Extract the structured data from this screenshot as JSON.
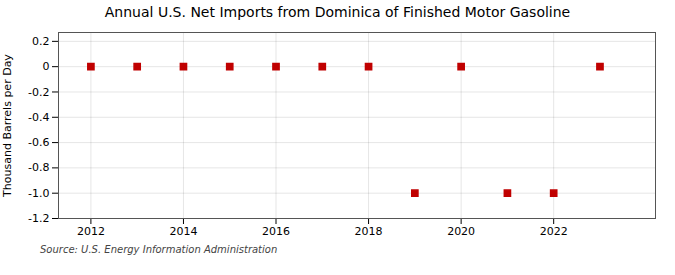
{
  "chart_data": {
    "type": "scatter",
    "title": "Annual U.S. Net Imports from Dominica of Finished Motor Gasoline",
    "ylabel": "Thousand Barrels per Day",
    "source": "Source: U.S. Energy Information Administration",
    "x": [
      2012,
      2013,
      2014,
      2015,
      2016,
      2017,
      2018,
      2019,
      2020,
      2021,
      2022,
      2023
    ],
    "values": [
      0,
      0,
      0,
      0,
      0,
      0,
      0,
      -1,
      0,
      -1,
      -1,
      0
    ],
    "xlim": [
      2011.3,
      2024.2
    ],
    "ylim": [
      -1.2,
      0.27
    ],
    "xticks": [
      2012,
      2014,
      2016,
      2018,
      2020,
      2022
    ],
    "yticks": [
      0.2,
      0,
      -0.2,
      -0.4,
      -0.6,
      -0.8,
      {
        "value": -1.0,
        "label": "-1.0"
      },
      -1.2
    ],
    "color": "#c00000",
    "marker": "square",
    "grid": true
  }
}
